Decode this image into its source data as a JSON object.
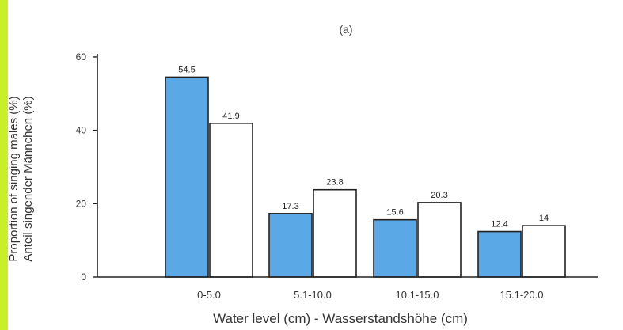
{
  "chart_data": {
    "type": "bar",
    "title": "(a)",
    "categories": [
      "0-5.0",
      "5.1-10.0",
      "10.1-15.0",
      "15.1-20.0"
    ],
    "series": [
      {
        "values": [
          54.5,
          17.3,
          15.6,
          12.4
        ],
        "color": "#5aa8e6"
      },
      {
        "values": [
          41.9,
          23.8,
          20.3,
          14
        ],
        "color": "#ffffff"
      }
    ],
    "data_labels": [
      [
        "54.5",
        "17.3",
        "15.6",
        "12.4"
      ],
      [
        "41.9",
        "23.8",
        "20.3",
        "14"
      ]
    ],
    "xlabel": "Water level (cm) - Wasserstandshöhe (cm)",
    "ylabel": [
      "Proportion of singing males (%)",
      "Anteil singender Männchen (%)"
    ],
    "ylim": [
      0,
      60
    ],
    "yticks": [
      "0",
      "20",
      "40",
      "60"
    ],
    "grid": false,
    "legend": "none",
    "colors": {
      "accent_strip": "#c8f02a",
      "bar_filled": "#5aa8e6",
      "bar_outline": "#222222"
    }
  }
}
